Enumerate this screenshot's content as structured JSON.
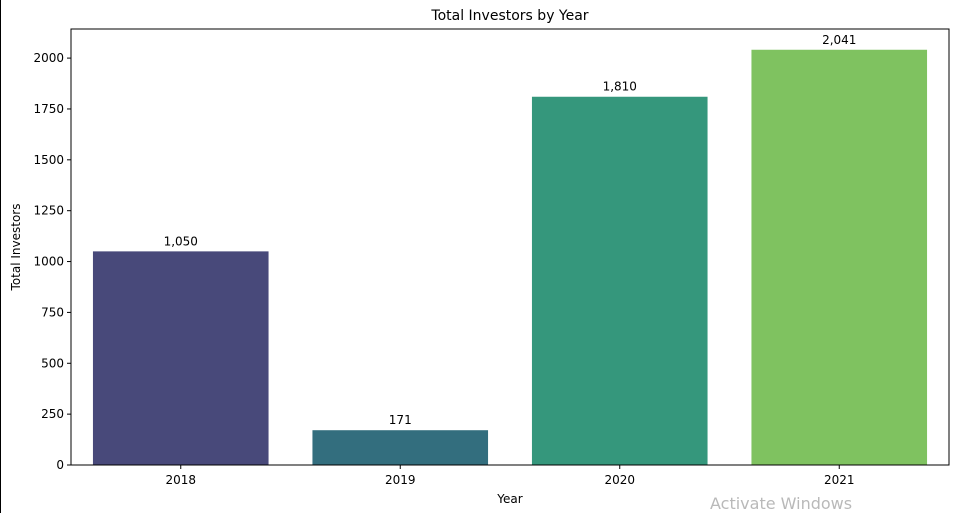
{
  "overlay": {
    "watermark_text": "Activate Windows"
  },
  "chart_data": {
    "type": "bar",
    "title": "Total Investors by Year",
    "xlabel": "Year",
    "ylabel": "Total Investors",
    "categories": [
      "2018",
      "2019",
      "2020",
      "2021"
    ],
    "values": [
      1050,
      171,
      1810,
      2041
    ],
    "data_labels": [
      "1,050",
      "171",
      "1,810",
      "2,041"
    ],
    "colors": [
      "#48497a",
      "#336e7e",
      "#35977c",
      "#7fc260"
    ],
    "ylim": [
      0,
      2143
    ],
    "yticks": [
      0,
      250,
      500,
      750,
      1000,
      1250,
      1500,
      1750,
      2000
    ],
    "grid": false,
    "legend": "none"
  }
}
